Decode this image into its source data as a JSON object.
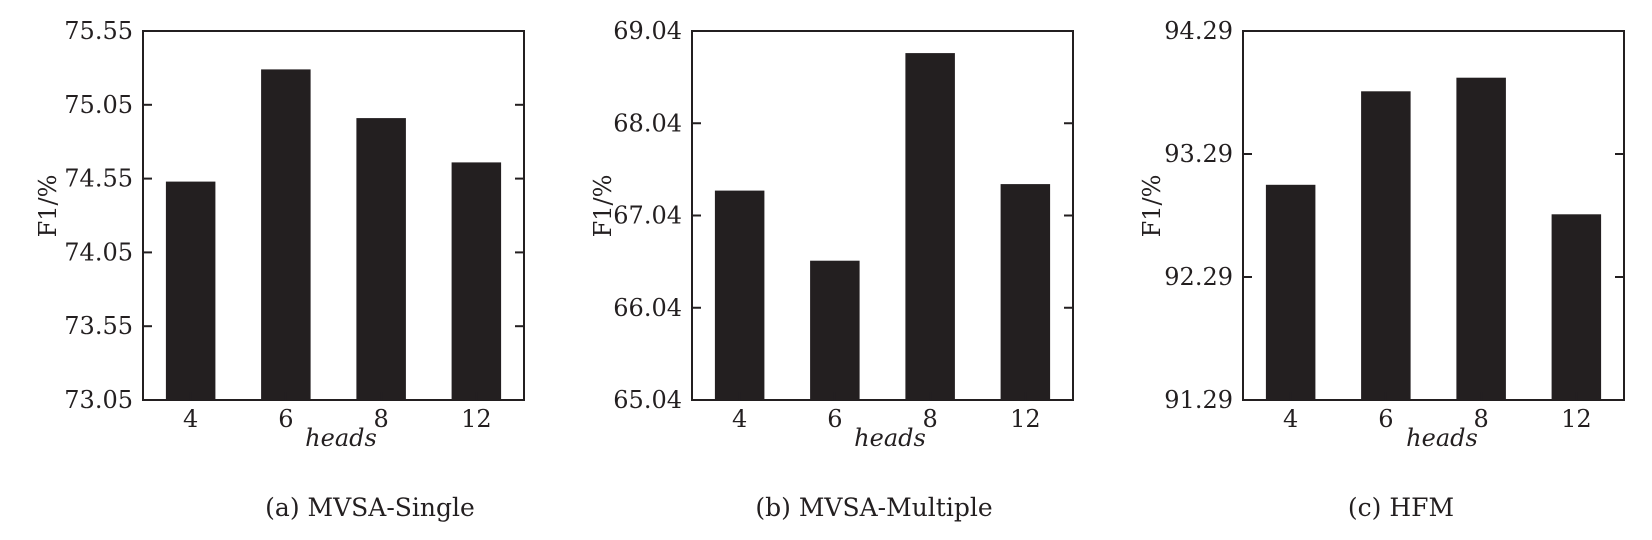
{
  "chart_data": [
    {
      "type": "bar",
      "caption": "(a) MVSA-Single",
      "categories": [
        "4",
        "6",
        "8",
        "12"
      ],
      "values": [
        74.53,
        75.29,
        74.96,
        74.66
      ],
      "xlabel": "heads",
      "ylabel": "F1/%",
      "ylim": [
        73.05,
        75.55
      ],
      "yticks": [
        73.05,
        73.55,
        74.05,
        74.55,
        75.05,
        75.55
      ],
      "ytick_labels": [
        "73.05",
        "73.55",
        "74.05",
        "74.55",
        "75.05",
        "75.55"
      ],
      "bar_color": "#231f20",
      "grid": false
    },
    {
      "type": "bar",
      "caption": "(b) MVSA-Multiple",
      "categories": [
        "4",
        "6",
        "8",
        "12"
      ],
      "values": [
        67.31,
        66.55,
        68.8,
        67.38
      ],
      "xlabel": "heads",
      "ylabel": "F1/%",
      "ylim": [
        65.04,
        69.04
      ],
      "yticks": [
        65.04,
        66.04,
        67.04,
        68.04,
        69.04
      ],
      "ytick_labels": [
        "65.04",
        "66.04",
        "67.04",
        "68.04",
        "69.04"
      ],
      "bar_color": "#231f20",
      "grid": false
    },
    {
      "type": "bar",
      "caption": "(c) HFM",
      "categories": [
        "4",
        "6",
        "8",
        "12"
      ],
      "values": [
        93.04,
        93.8,
        93.91,
        92.8
      ],
      "xlabel": "heads",
      "ylabel": "F1/%",
      "ylim": [
        91.29,
        94.29
      ],
      "yticks": [
        91.29,
        92.29,
        93.29,
        94.29
      ],
      "ytick_labels": [
        "91.29",
        "92.29",
        "93.29",
        "94.29"
      ],
      "bar_color": "#231f20",
      "grid": false
    }
  ]
}
